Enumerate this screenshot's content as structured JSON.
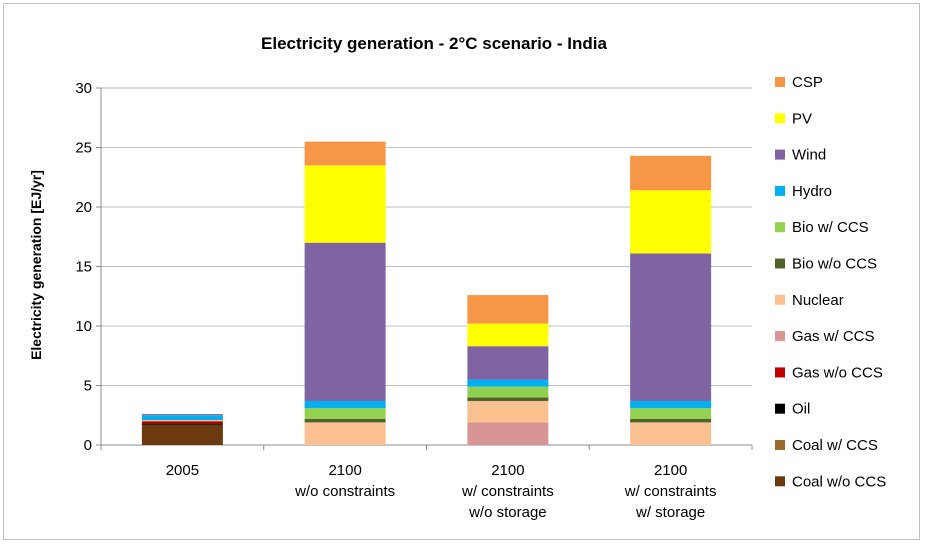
{
  "chart_data": {
    "type": "bar",
    "stacked": true,
    "title": "Electricity generation - 2°C scenario - India",
    "ylabel": "Electricity generation [EJ/yr]",
    "xlabel": "",
    "ylim": [
      0,
      30
    ],
    "yticks": [
      0,
      5,
      10,
      15,
      20,
      25,
      30
    ],
    "grid": true,
    "legend_position": "right",
    "categories": [
      [
        "2005"
      ],
      [
        "2100",
        "w/o constraints"
      ],
      [
        "2100",
        "w/ constraints",
        "w/o storage"
      ],
      [
        "2100",
        "w/ constraints",
        "w/ storage"
      ]
    ],
    "series": [
      {
        "name": "Coal w/o CCS",
        "color": "#6b3a0f",
        "values": [
          1.7,
          0,
          0,
          0
        ]
      },
      {
        "name": "Coal w/ CCS",
        "color": "#9c6a2e",
        "values": [
          0,
          0,
          0,
          0
        ]
      },
      {
        "name": "Oil",
        "color": "#000000",
        "values": [
          0.1,
          0,
          0,
          0
        ]
      },
      {
        "name": "Gas w/o CCS",
        "color": "#c00000",
        "values": [
          0.2,
          0,
          0,
          0
        ]
      },
      {
        "name": "Gas w/ CCS",
        "color": "#d99594",
        "values": [
          0,
          0,
          1.9,
          0
        ]
      },
      {
        "name": "Nuclear",
        "color": "#fac090",
        "values": [
          0.1,
          1.9,
          1.8,
          1.9
        ]
      },
      {
        "name": "Bio w/o CCS",
        "color": "#4f6228",
        "values": [
          0,
          0.3,
          0.3,
          0.3
        ]
      },
      {
        "name": "Bio w/ CCS",
        "color": "#92d050",
        "values": [
          0,
          0.9,
          0.9,
          0.9
        ]
      },
      {
        "name": "Hydro",
        "color": "#00b0f0",
        "values": [
          0.4,
          0.6,
          0.6,
          0.6
        ]
      },
      {
        "name": "Wind",
        "color": "#8064a2",
        "values": [
          0.1,
          13.3,
          2.8,
          12.4
        ]
      },
      {
        "name": "PV",
        "color": "#ffff00",
        "values": [
          0,
          6.5,
          1.9,
          5.3
        ]
      },
      {
        "name": "CSP",
        "color": "#f79646",
        "values": [
          0,
          2.0,
          2.4,
          2.9
        ]
      }
    ]
  }
}
